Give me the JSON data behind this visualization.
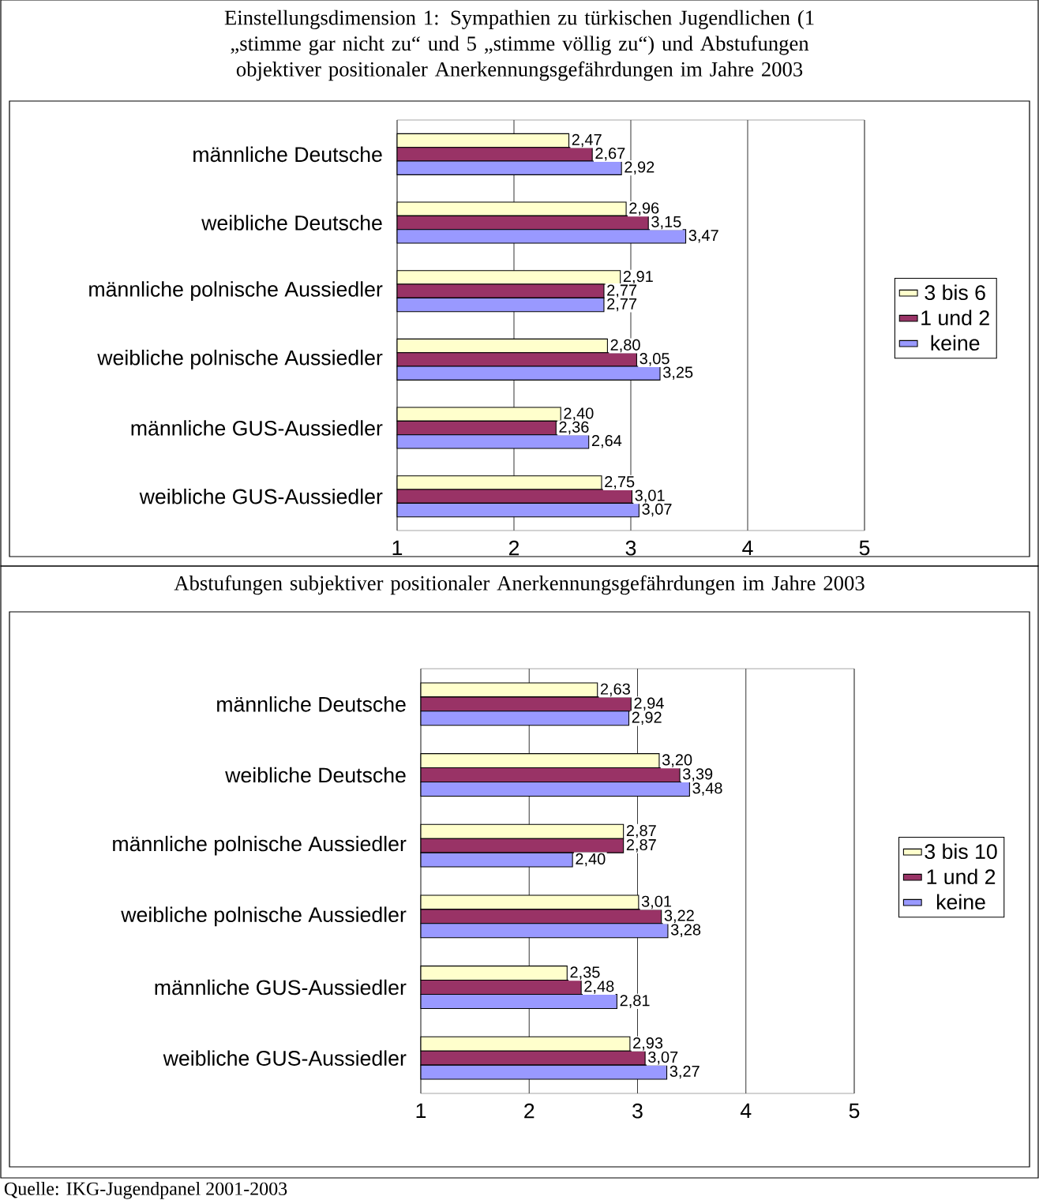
{
  "chart_data": [
    {
      "type": "bar",
      "orientation": "horizontal",
      "title": "Einstellungsdimension 1: Sympathien zu türkischen Jugendlichen (1 „stimme gar nicht zu“ und 5 „stimme völlig zu“) und Abstufungen objektiver positionaler Anerkennungsgefährdungen im Jahre 2003",
      "categories": [
        "männliche Deutsche",
        "weibliche Deutsche",
        "männliche polnische Aussiedler",
        "weibliche polnische Aussiedler",
        "männliche GUS-Aussiedler",
        "weibliche GUS-Aussiedler"
      ],
      "series": [
        {
          "name": "3 bis 6",
          "color": "#ffffcc",
          "values": [
            2.47,
            2.96,
            2.91,
            2.8,
            2.4,
            2.75
          ],
          "value_labels": [
            "2,47",
            "2,96",
            "2,91",
            "2,80",
            "2,40",
            "2,75"
          ]
        },
        {
          "name": "1 und 2",
          "color": "#993366",
          "values": [
            2.67,
            3.15,
            2.77,
            3.05,
            2.36,
            3.01
          ],
          "value_labels": [
            "2,67",
            "3,15",
            "2,77",
            "3,05",
            "2,36",
            "3,01"
          ]
        },
        {
          "name": "keine",
          "color": "#9999ff",
          "values": [
            2.92,
            3.47,
            2.77,
            3.25,
            2.64,
            3.07
          ],
          "value_labels": [
            "2,92",
            "3,47",
            "2,77",
            "3,25",
            "2,64",
            "3,07"
          ]
        }
      ],
      "xlim": [
        1,
        5
      ],
      "xticks": [
        1,
        2,
        3,
        4,
        5
      ],
      "grid": "x",
      "legend": "right"
    },
    {
      "type": "bar",
      "orientation": "horizontal",
      "title": "Abstufungen subjektiver positionaler Anerkennungsgefährdungen im Jahre 2003",
      "categories": [
        "männliche Deutsche",
        "weibliche Deutsche",
        "männliche polnische Aussiedler",
        "weibliche polnische Aussiedler",
        "männliche GUS-Aussiedler",
        "weibliche GUS-Aussiedler"
      ],
      "series": [
        {
          "name": "3 bis 10",
          "color": "#ffffcc",
          "values": [
            2.63,
            3.2,
            2.87,
            3.01,
            2.35,
            2.93
          ],
          "value_labels": [
            "2,63",
            "3,20",
            "2,87",
            "3,01",
            "2,35",
            "2,93"
          ]
        },
        {
          "name": "1 und 2",
          "color": "#993366",
          "values": [
            2.94,
            3.39,
            2.87,
            3.22,
            2.48,
            3.07
          ],
          "value_labels": [
            "2,94",
            "3,39",
            "2,87",
            "3,22",
            "2,48",
            "3,07"
          ]
        },
        {
          "name": "keine",
          "color": "#9999ff",
          "values": [
            2.92,
            3.48,
            2.4,
            3.28,
            2.81,
            3.27
          ],
          "value_labels": [
            "2,92",
            "3,48",
            "2,40",
            "3,28",
            "2,81",
            "3,27"
          ]
        }
      ],
      "xlim": [
        1,
        5
      ],
      "xticks": [
        1,
        2,
        3,
        4,
        5
      ],
      "grid": "x",
      "legend": "right",
      "annotations": [
        "Quelle: IKG-Jugendpanel 2001-2003"
      ]
    }
  ]
}
